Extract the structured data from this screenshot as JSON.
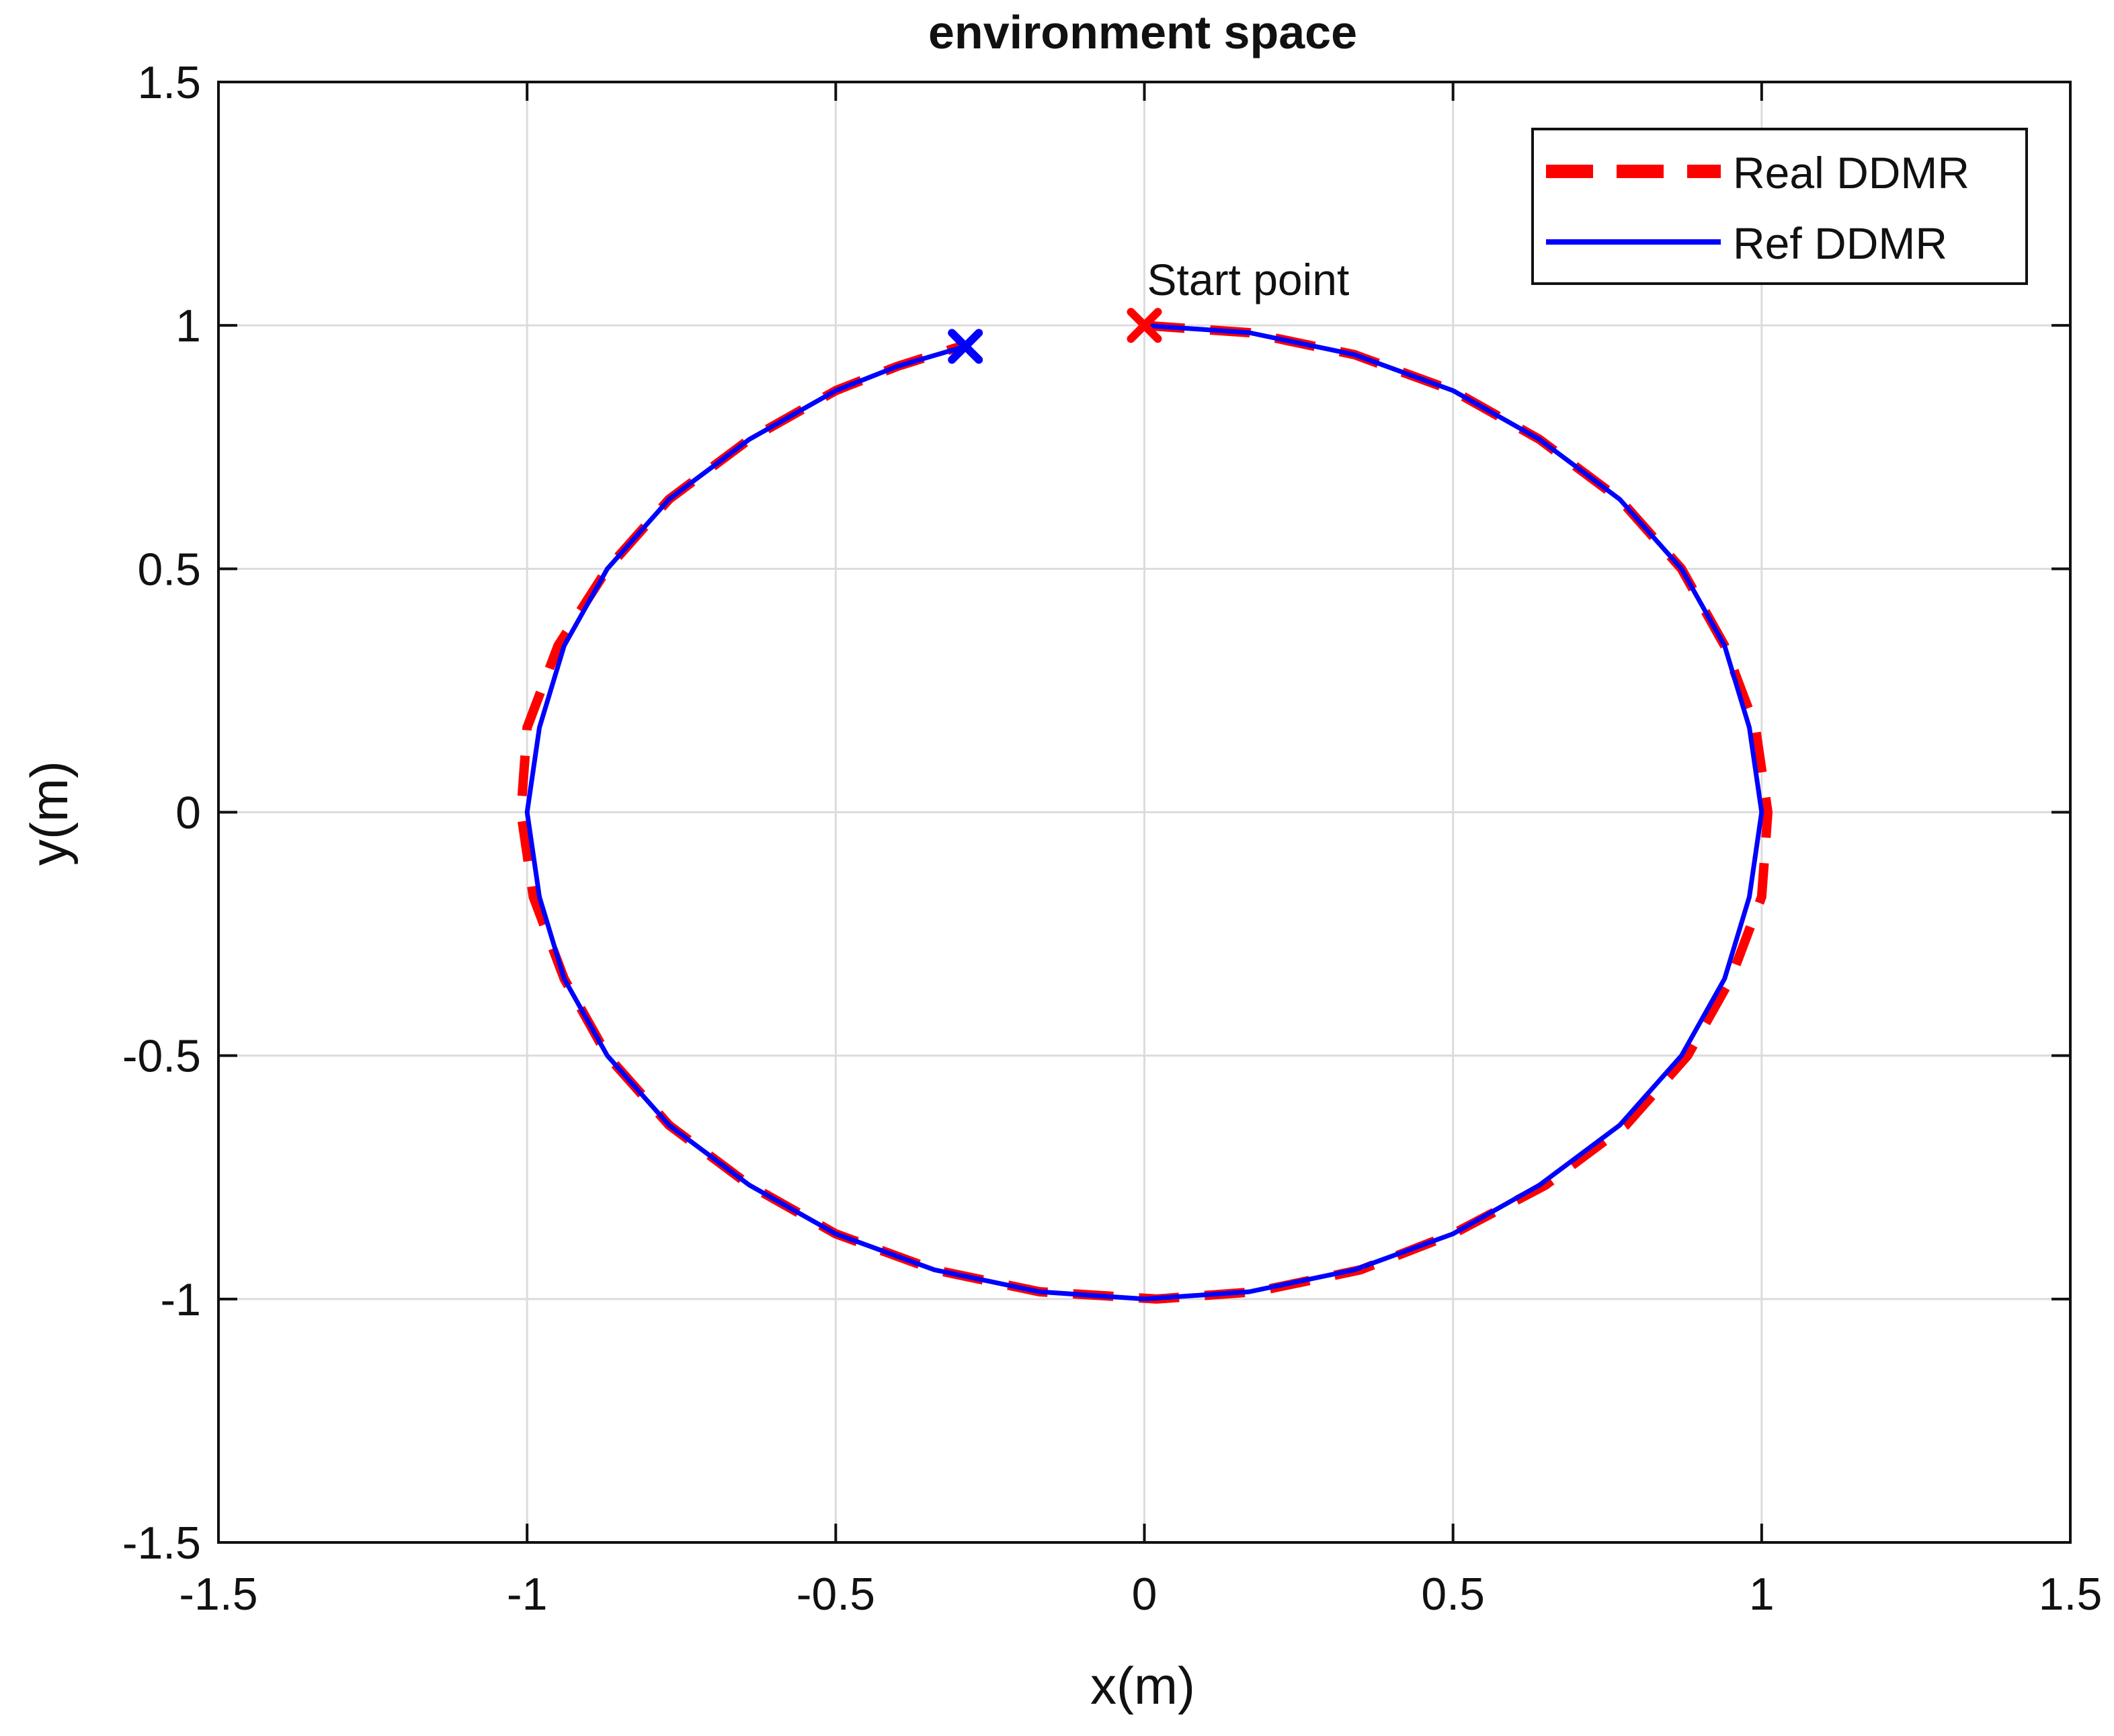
{
  "chart_data": {
    "type": "line",
    "title": "environment space",
    "xlabel": "x(m)",
    "ylabel": "y(m)",
    "xlim": [
      -1.5,
      1.5
    ],
    "ylim": [
      -1.5,
      1.5
    ],
    "xticks": [
      -1.5,
      -1,
      -0.5,
      0,
      0.5,
      1,
      1.5
    ],
    "yticks": [
      -1.5,
      -1,
      -0.5,
      0,
      0.5,
      1,
      1.5
    ],
    "xtick_labels": [
      "-1.5",
      "-1",
      "-0.5",
      "0",
      "0.5",
      "1",
      "1.5"
    ],
    "ytick_labels": [
      "-1.5",
      "-1",
      "-0.5",
      "0",
      "0.5",
      "1",
      "1.5"
    ],
    "grid": true,
    "legend_position": "top-right",
    "series": [
      {
        "name": "Real DDMR",
        "style": "dashed",
        "color": "#ff0000",
        "x": [
          0.0,
          0.17,
          0.34,
          0.5,
          0.64,
          0.77,
          0.87,
          0.94,
          0.99,
          1.01,
          1.0,
          0.95,
          0.88,
          0.78,
          0.65,
          0.5,
          0.35,
          0.18,
          0.02,
          -0.17,
          -0.34,
          -0.5,
          -0.64,
          -0.77,
          -0.87,
          -0.94,
          -0.99,
          -1.01,
          -1.0,
          -0.95,
          -0.87,
          -0.77,
          -0.64,
          -0.5,
          -0.4,
          -0.3
        ],
        "y": [
          1.0,
          0.985,
          0.94,
          0.866,
          0.766,
          0.643,
          0.5,
          0.342,
          0.174,
          0.0,
          -0.174,
          -0.342,
          -0.5,
          -0.643,
          -0.766,
          -0.866,
          -0.94,
          -0.985,
          -1.0,
          -0.985,
          -0.94,
          -0.866,
          -0.766,
          -0.643,
          -0.5,
          -0.342,
          -0.174,
          0.0,
          0.174,
          0.342,
          0.5,
          0.643,
          0.766,
          0.866,
          0.916,
          0.956
        ]
      },
      {
        "name": "Ref DDMR",
        "style": "solid",
        "color": "#0000ff",
        "x": [
          0.0,
          0.17,
          0.34,
          0.5,
          0.64,
          0.77,
          0.87,
          0.94,
          0.98,
          1.0,
          0.98,
          0.94,
          0.87,
          0.77,
          0.64,
          0.5,
          0.34,
          0.17,
          0.0,
          -0.17,
          -0.34,
          -0.5,
          -0.64,
          -0.77,
          -0.87,
          -0.94,
          -0.98,
          -1.0,
          -0.98,
          -0.94,
          -0.87,
          -0.77,
          -0.64,
          -0.5,
          -0.4,
          -0.29
        ],
        "y": [
          1.0,
          0.985,
          0.94,
          0.866,
          0.766,
          0.643,
          0.5,
          0.342,
          0.174,
          0.0,
          -0.174,
          -0.342,
          -0.5,
          -0.643,
          -0.766,
          -0.866,
          -0.94,
          -0.985,
          -1.0,
          -0.985,
          -0.94,
          -0.866,
          -0.766,
          -0.643,
          -0.5,
          -0.342,
          -0.174,
          0.0,
          0.174,
          0.342,
          0.5,
          0.643,
          0.766,
          0.866,
          0.916,
          0.957
        ]
      }
    ],
    "markers": [
      {
        "label": "Start point",
        "x": 0.0,
        "y": 1.0,
        "color": "#ff0000"
      },
      {
        "label": "",
        "x": -0.29,
        "y": 0.957,
        "color": "#0000ff"
      }
    ],
    "annotations": [
      {
        "text": "Start point",
        "x": 0.0,
        "y": 1.0
      }
    ]
  }
}
